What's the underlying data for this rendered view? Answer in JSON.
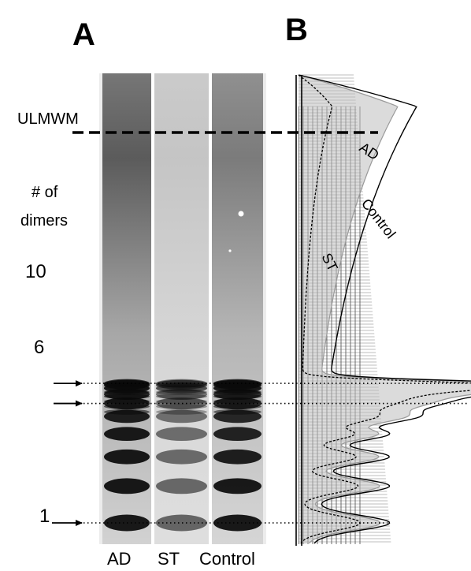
{
  "panels": {
    "a_label": "A",
    "b_label": "B"
  },
  "gel": {
    "lanes": [
      {
        "label": "AD",
        "intensity": 1.0,
        "background": 0.55
      },
      {
        "label": "ST",
        "intensity": 0.55,
        "background": 0.12
      },
      {
        "label": "Control",
        "intensity": 0.95,
        "background": 0.42
      }
    ],
    "band_count": 14,
    "ulmwm_label": "ULMWM",
    "dimers_heading_line1": "# of",
    "dimers_heading_line2": "dimers",
    "markers": [
      {
        "label": "10",
        "band": 10
      },
      {
        "label": "6",
        "band": 6
      },
      {
        "label": "1",
        "band": 1
      }
    ]
  },
  "profiles": {
    "curve_labels": [
      "AD",
      "Control",
      "ST"
    ]
  },
  "colors": {
    "ink": "#000000",
    "gel_band": "#0a0a0a",
    "profile_fill_gray": "#bdbdbd"
  }
}
